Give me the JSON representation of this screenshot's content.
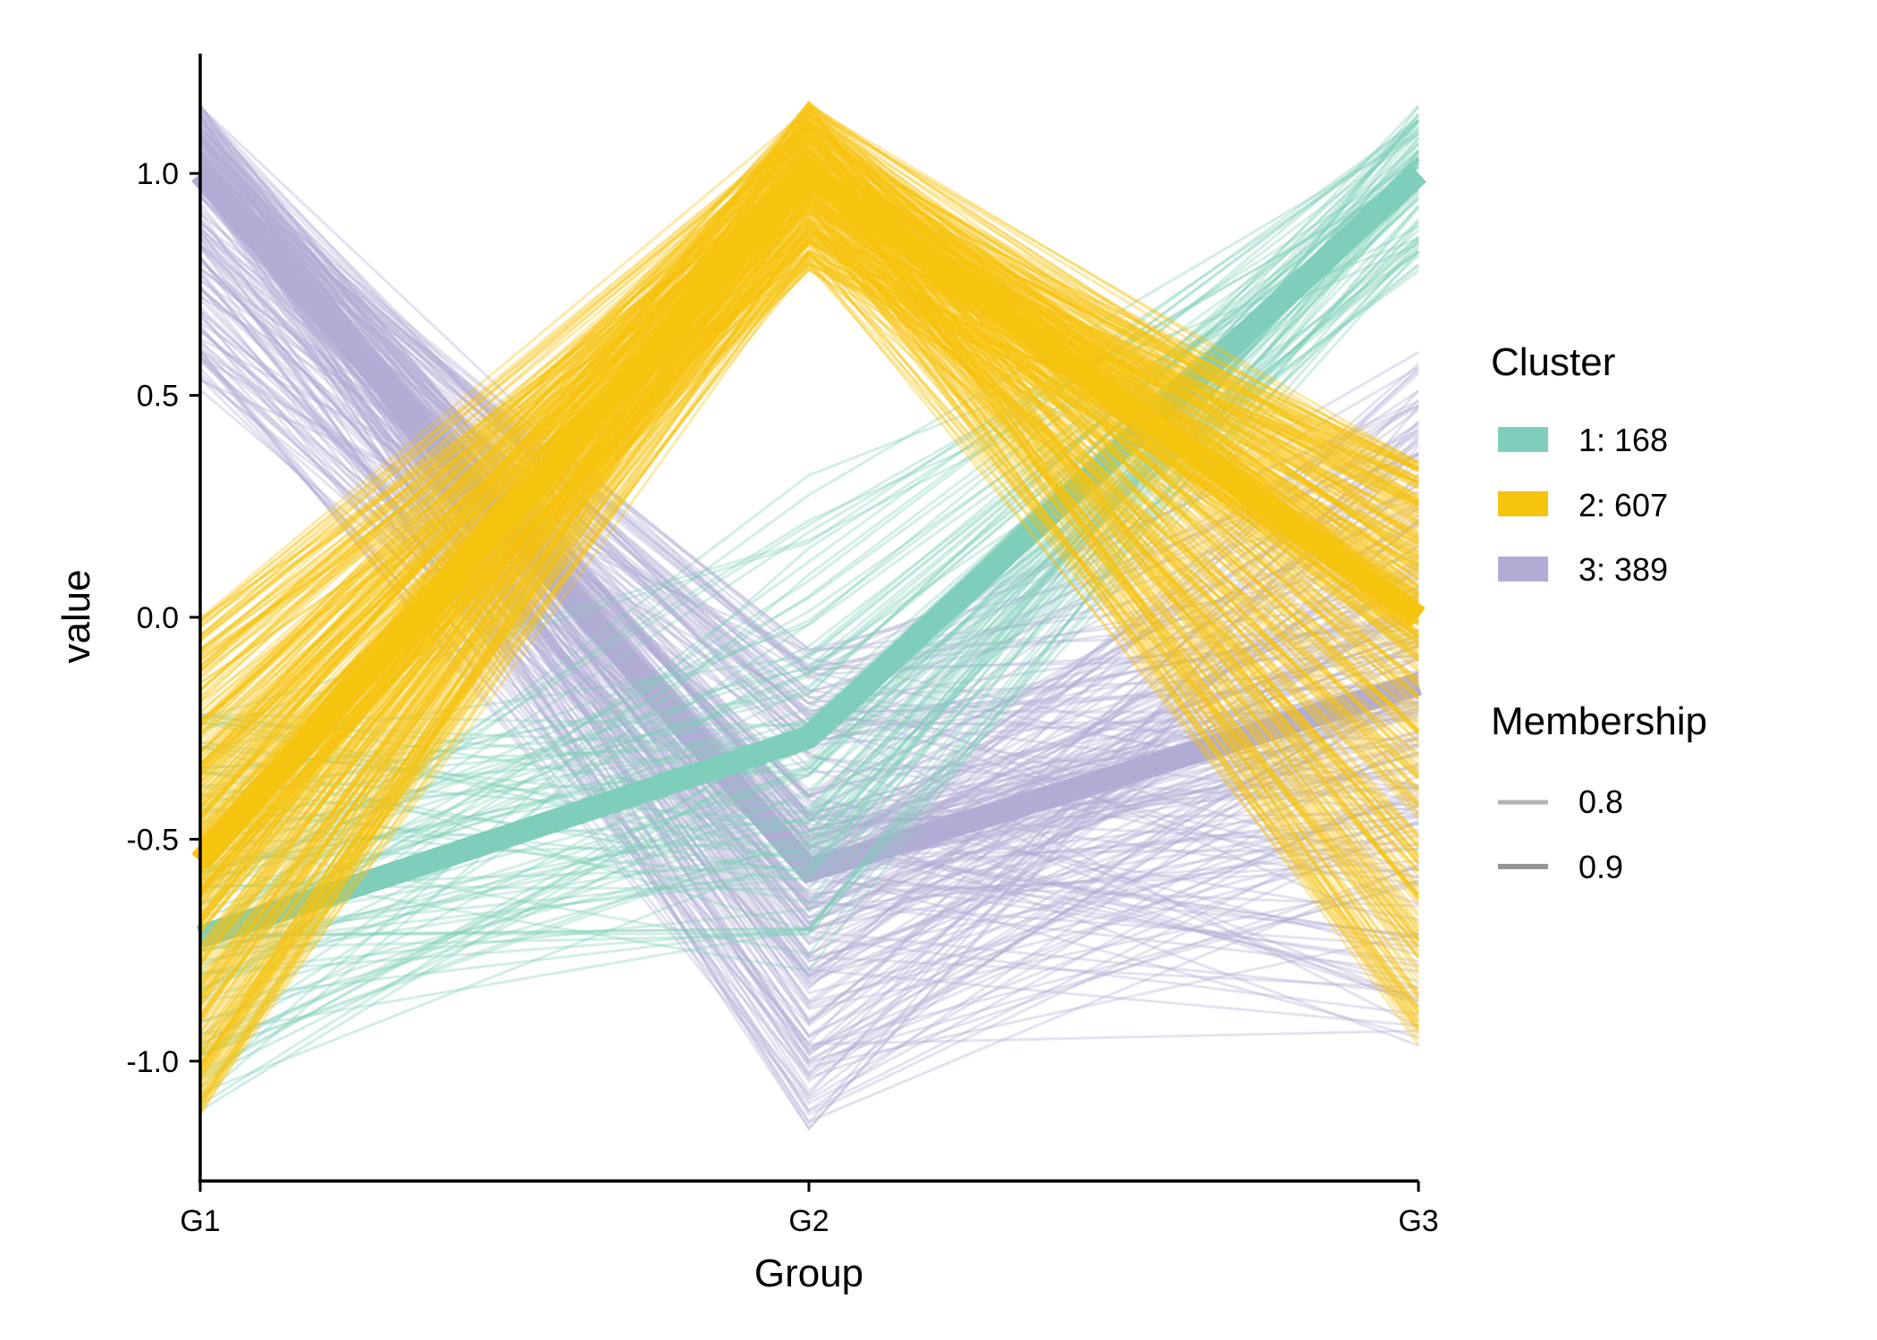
{
  "chart_data": {
    "type": "line",
    "subtype": "parallel-coordinates",
    "categories": [
      "G1",
      "G2",
      "G3"
    ],
    "xlabel": "Group",
    "ylabel": "value",
    "ylim": [
      -1.27,
      1.27
    ],
    "yticks": [
      1.0,
      0.5,
      0.0,
      -0.5,
      -1.0
    ],
    "ytick_labels": [
      "1.0",
      "0.5",
      "0.0",
      "-0.5",
      "-1.0"
    ],
    "grid": false,
    "legend_position": "right",
    "legend": {
      "cluster_title": "Cluster",
      "cluster_entries": [
        {
          "label": "1: 168",
          "color": "#7fcdbb"
        },
        {
          "label": "2: 607",
          "color": "#f5c40f"
        },
        {
          "label": "3: 389",
          "color": "#b1acd3"
        }
      ],
      "membership_title": "Membership",
      "membership_entries": [
        {
          "label": "0.8",
          "color": "#b4b4b4"
        },
        {
          "label": "0.9",
          "color": "#969696"
        }
      ]
    },
    "series": [
      {
        "name": "1: 168",
        "color": "#7fcdbb",
        "count": 168,
        "center": [
          -0.72,
          -0.27,
          1.0
        ],
        "bundle_min": [
          -1.12,
          -0.8,
          0.78
        ],
        "bundle_max": [
          -0.18,
          0.33,
          1.16
        ],
        "mean_membership": 0.9
      },
      {
        "name": "2: 607",
        "color": "#f5c40f",
        "count": 607,
        "center": [
          -0.55,
          1.0,
          0.0
        ],
        "bundle_min": [
          -1.13,
          0.78,
          -0.97
        ],
        "bundle_max": [
          0.0,
          1.16,
          0.35
        ],
        "mean_membership": 0.9
      },
      {
        "name": "3: 389",
        "color": "#b1acd3",
        "count": 389,
        "center": [
          1.0,
          -0.57,
          -0.15
        ],
        "bundle_min": [
          0.5,
          -1.16,
          -0.97
        ],
        "bundle_max": [
          1.16,
          -0.07,
          0.6
        ],
        "mean_membership": 0.9
      }
    ]
  }
}
